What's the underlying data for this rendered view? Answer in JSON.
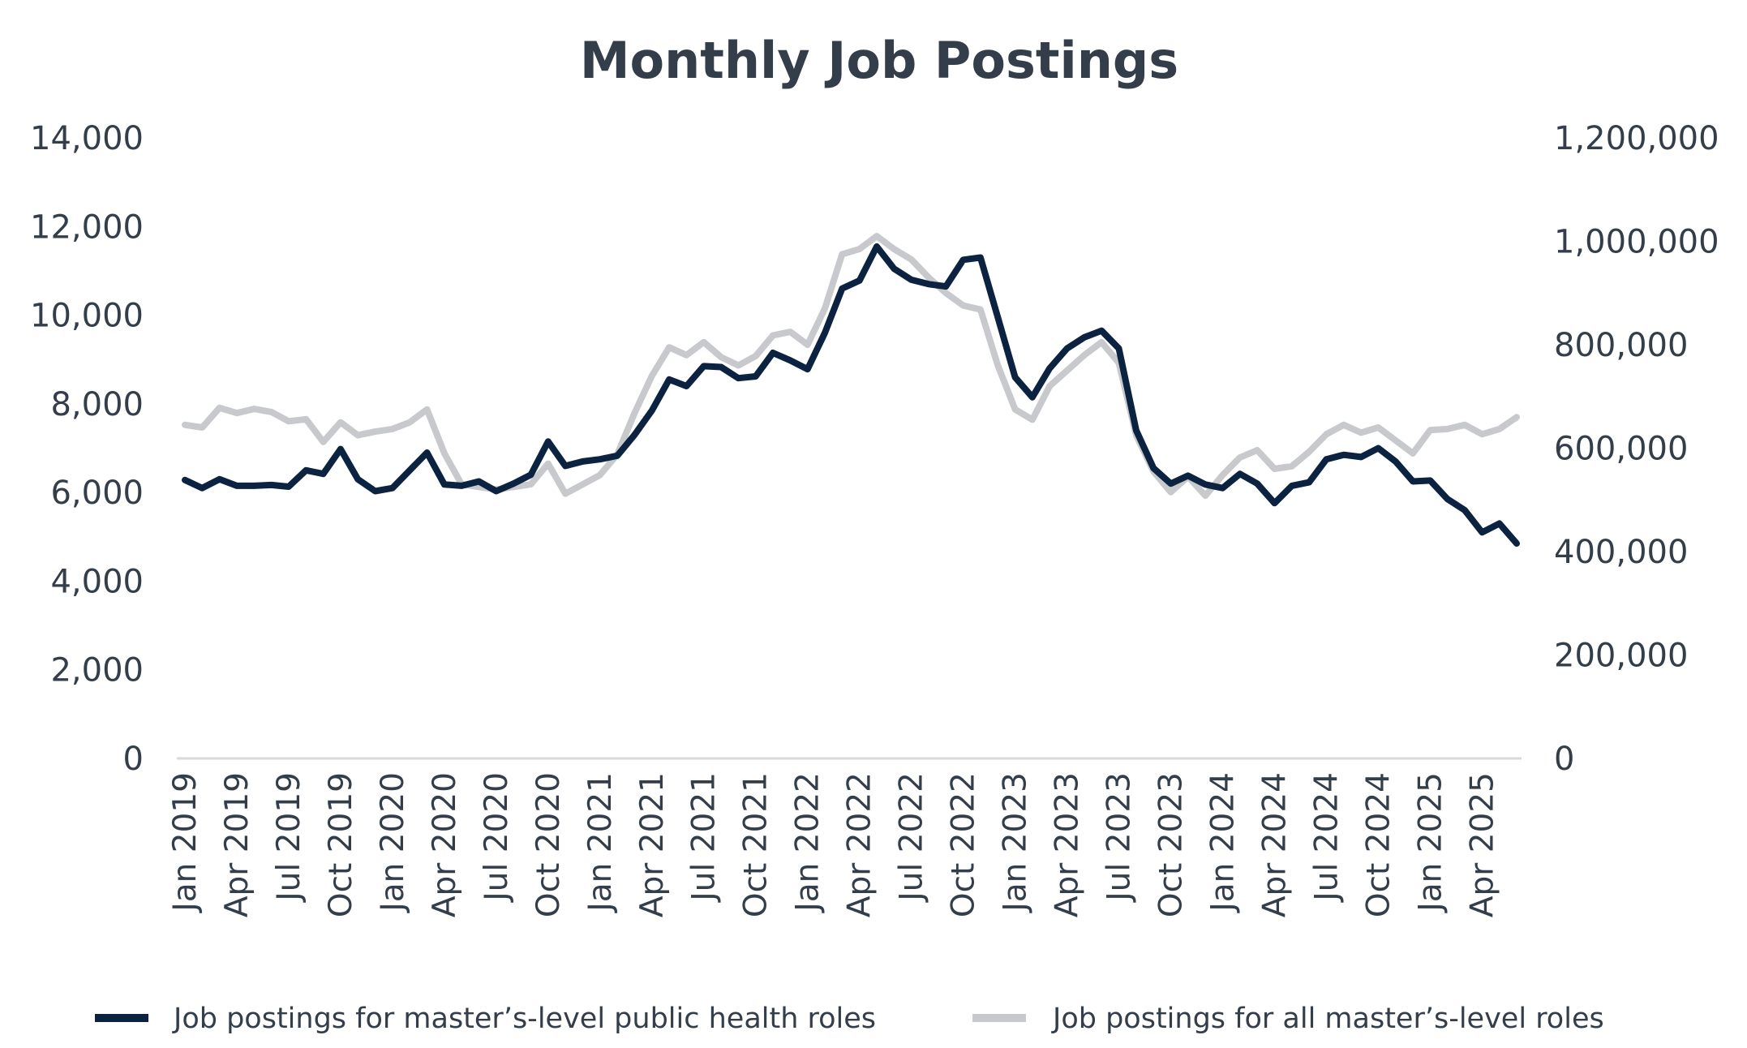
{
  "chart_data": {
    "type": "line",
    "title": "Monthly Job Postings",
    "xlabel": "",
    "ylabel": "",
    "y_left": {
      "ylim": [
        0,
        14000
      ],
      "ticks": [
        "0",
        "2,000",
        "4,000",
        "6,000",
        "8,000",
        "10,000",
        "12,000",
        "14,000"
      ]
    },
    "y_right": {
      "ylim": [
        0,
        1200000
      ],
      "ticks": [
        "0",
        "200,000",
        "400,000",
        "600,000",
        "800,000",
        "1,000,000",
        "1,200,000"
      ]
    },
    "x": [
      "Jan 2019",
      "Feb 2019",
      "Mar 2019",
      "Apr 2019",
      "May 2019",
      "Jun 2019",
      "Jul 2019",
      "Aug 2019",
      "Sep 2019",
      "Oct 2019",
      "Nov 2019",
      "Dec 2019",
      "Jan 2020",
      "Feb 2020",
      "Mar 2020",
      "Apr 2020",
      "May 2020",
      "Jun 2020",
      "Jul 2020",
      "Aug 2020",
      "Sep 2020",
      "Oct 2020",
      "Nov 2020",
      "Dec 2020",
      "Jan 2021",
      "Feb 2021",
      "Mar 2021",
      "Apr 2021",
      "May 2021",
      "Jun 2021",
      "Jul 2021",
      "Aug 2021",
      "Sep 2021",
      "Oct 2021",
      "Nov 2021",
      "Dec 2021",
      "Jan 2022",
      "Feb 2022",
      "Mar 2022",
      "Apr 2022",
      "May 2022",
      "Jun 2022",
      "Jul 2022",
      "Aug 2022",
      "Sep 2022",
      "Oct 2022",
      "Nov 2022",
      "Dec 2022",
      "Jan 2023",
      "Feb 2023",
      "Mar 2023",
      "Apr 2023",
      "May 2023",
      "Jun 2023",
      "Jul 2023",
      "Aug 2023",
      "Sep 2023",
      "Oct 2023",
      "Nov 2023",
      "Dec 2023",
      "Jan 2024",
      "Feb 2024",
      "Mar 2024",
      "Apr 2024",
      "May 2024",
      "Jun 2024",
      "Jul 2024",
      "Aug 2024",
      "Sep 2024",
      "Oct 2024",
      "Nov 2024",
      "Dec 2024",
      "Jan 2025",
      "Feb 2025",
      "Mar 2025",
      "Apr 2025",
      "May 2025",
      "Jun 2025"
    ],
    "x_tick_labels": [
      "Jan 2019",
      "Apr 2019",
      "Jul 2019",
      "Oct 2019",
      "Jan 2020",
      "Apr 2020",
      "Jul 2020",
      "Oct 2020",
      "Jan 2021",
      "Apr 2021",
      "Jul 2021",
      "Oct 2021",
      "Jan 2022",
      "Apr 2022",
      "Jul 2022",
      "Oct 2022",
      "Jan 2023",
      "Apr 2023",
      "Jul 2023",
      "Oct 2023",
      "Jan 2024",
      "Apr 2024",
      "Jul 2024",
      "Oct 2024",
      "Jan 2025",
      "Apr 2025"
    ],
    "x_tick_every": 3,
    "grid": false,
    "legend_position": "bottom",
    "series": [
      {
        "name": "Job postings for master’s-level public health roles",
        "axis": "left",
        "color": "#0b2340",
        "values": [
          6280,
          6100,
          6300,
          6150,
          6150,
          6170,
          6130,
          6500,
          6420,
          6980,
          6300,
          6030,
          6100,
          6500,
          6900,
          6180,
          6150,
          6250,
          6030,
          6200,
          6400,
          7150,
          6600,
          6700,
          6750,
          6830,
          7300,
          7850,
          8550,
          8400,
          8850,
          8830,
          8580,
          8620,
          9150,
          8980,
          8780,
          9600,
          10600,
          10780,
          11550,
          11050,
          10800,
          10700,
          10650,
          11250,
          11300,
          9950,
          8600,
          8150,
          8800,
          9250,
          9500,
          9650,
          9250,
          7400,
          6550,
          6200,
          6380,
          6180,
          6100,
          6420,
          6200,
          5760,
          6150,
          6230,
          6750,
          6850,
          6800,
          7000,
          6700,
          6250,
          6270,
          5850,
          5600,
          5100,
          5300,
          4850
        ]
      },
      {
        "name": "Job postings for all master’s-level roles",
        "axis": "right",
        "color": "#c7c9cc",
        "values": [
          645000,
          640000,
          678000,
          668000,
          676000,
          670000,
          652000,
          656000,
          612000,
          650000,
          625000,
          632000,
          637000,
          650000,
          675000,
          590000,
          530000,
          525000,
          520000,
          525000,
          530000,
          570000,
          512000,
          530000,
          548000,
          588000,
          668000,
          740000,
          795000,
          780000,
          805000,
          776000,
          760000,
          778000,
          818000,
          825000,
          800000,
          870000,
          975000,
          985000,
          1010000,
          985000,
          965000,
          930000,
          900000,
          876000,
          868000,
          760000,
          675000,
          655000,
          720000,
          750000,
          780000,
          805000,
          765000,
          625000,
          555000,
          515000,
          545000,
          508000,
          548000,
          582000,
          596000,
          560000,
          565000,
          593000,
          627000,
          645000,
          630000,
          640000,
          615000,
          590000,
          635000,
          637000,
          645000,
          627000,
          637000,
          660000
        ]
      }
    ]
  }
}
